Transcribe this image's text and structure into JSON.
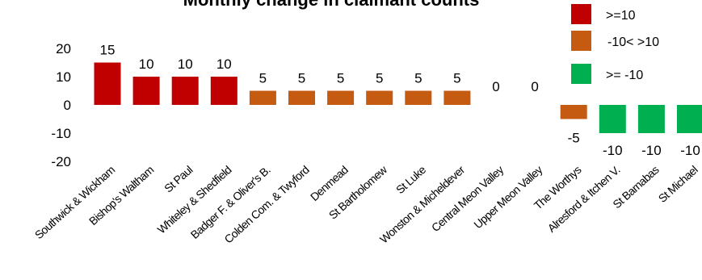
{
  "chart_data": {
    "type": "bar",
    "title": "Monthly change in claimant counts",
    "categories": [
      "Southwick & Wickham",
      "Bishop's Waltham",
      "St Paul",
      "Whiteley & Shedfield",
      "Badger F. & Oliver's B.",
      "Colden Com. & Twyford",
      "Denmead",
      "St Bartholomew",
      "St Luke",
      "Wonston & Micheldever",
      "Central Meon Valley",
      "Upper Meon Valley",
      "The Worthys",
      "Alresford & Itchen V.",
      "St Barnabas",
      "St Michael"
    ],
    "values": [
      15,
      10,
      10,
      10,
      5,
      5,
      5,
      5,
      5,
      5,
      0,
      0,
      -5,
      -10,
      -10,
      -10
    ],
    "data_labels": [
      "15",
      "10",
      "10",
      "10",
      "5",
      "5",
      "5",
      "5",
      "5",
      "5",
      "0",
      "0",
      "-5",
      "-10",
      "-10",
      "-10"
    ],
    "yticks": [
      "-20",
      "-10",
      "0",
      "10",
      "20"
    ],
    "ylim": [
      -20,
      20
    ],
    "grid": false,
    "legend_position": "top-right",
    "legend": [
      {
        "label": ">=10",
        "color": "#c00000"
      },
      {
        "label": "-10< >10",
        "color": "#c55a11"
      },
      {
        "label": ">= -10",
        "color": "#00b050"
      }
    ]
  }
}
